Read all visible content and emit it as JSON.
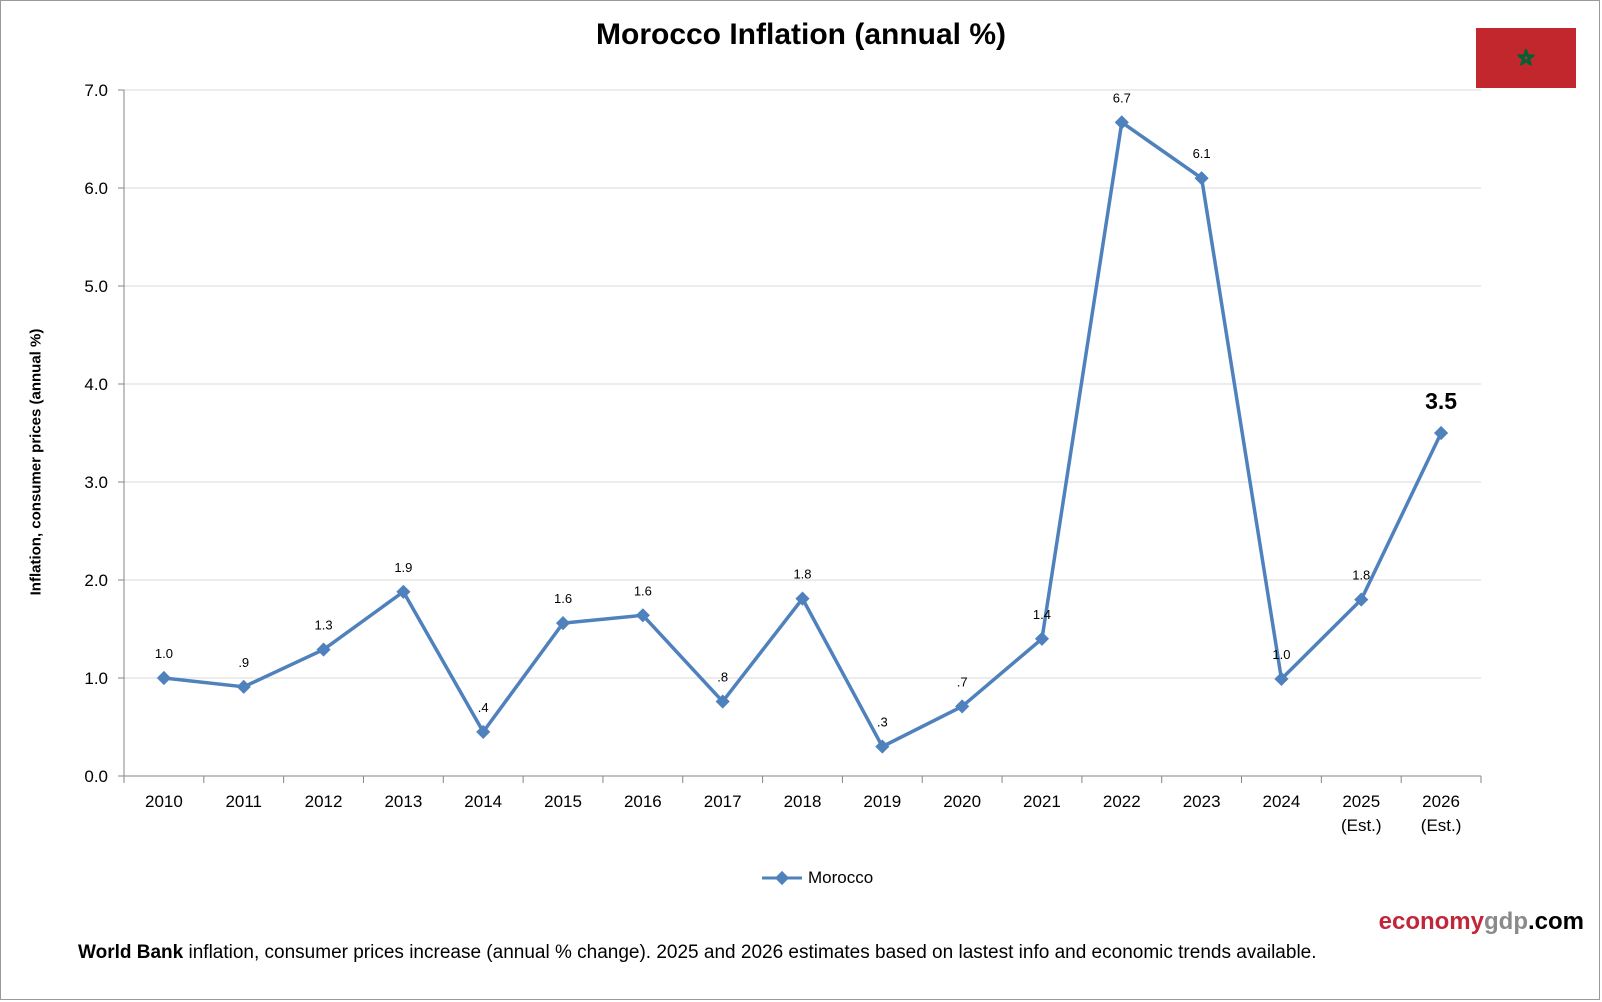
{
  "chart_data": {
    "type": "line",
    "title": "Morocco Inflation (annual %)",
    "ylabel": "Inflation, consumer prices (annual %)",
    "xlabel": "",
    "ylim": [
      0,
      7
    ],
    "yticks": [
      "0.0",
      "1.0",
      "2.0",
      "3.0",
      "4.0",
      "5.0",
      "6.0",
      "7.0"
    ],
    "grid": true,
    "legend_position": "bottom",
    "categories": [
      [
        "2010"
      ],
      [
        "2011"
      ],
      [
        "2012"
      ],
      [
        "2013"
      ],
      [
        "2014"
      ],
      [
        "2015"
      ],
      [
        "2016"
      ],
      [
        "2017"
      ],
      [
        "2018"
      ],
      [
        "2019"
      ],
      [
        "2020"
      ],
      [
        "2021"
      ],
      [
        "2022"
      ],
      [
        "2023"
      ],
      [
        "2024"
      ],
      [
        "2025",
        "(Est.)"
      ],
      [
        "2026",
        "(Est.)"
      ]
    ],
    "series": [
      {
        "name": "Morocco",
        "color": "#4f81bd",
        "values": [
          1.0,
          0.91,
          1.29,
          1.88,
          0.45,
          1.56,
          1.64,
          0.76,
          1.81,
          0.3,
          0.71,
          1.4,
          6.67,
          6.1,
          0.99,
          1.8,
          3.5
        ],
        "labels": [
          "1.0",
          ".9",
          "1.3",
          "1.9",
          ".4",
          "1.6",
          "1.6",
          ".8",
          "1.8",
          ".3",
          ".7",
          "1.4",
          "6.7",
          "6.1",
          "1.0",
          "1.8",
          "3.5"
        ]
      }
    ]
  },
  "flag": {
    "country": "Morocco",
    "icon": "morocco-flag-icon",
    "field_color": "#c1272d",
    "star_color": "#006233"
  },
  "brand": {
    "part1": "economy",
    "part2": "gdp",
    "part3": ".com"
  },
  "footnote": {
    "bold": "World Bank",
    "text": " inflation,  consumer prices increase (annual % change).  2025 and 2026 estimates based on lastest info and economic trends available."
  }
}
